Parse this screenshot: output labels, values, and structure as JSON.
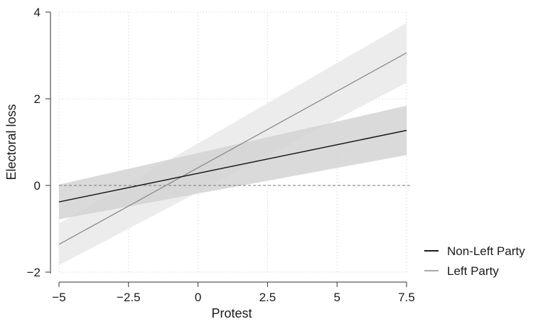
{
  "chart_data": {
    "type": "line",
    "xlabel": "Protest",
    "ylabel": "Electoral loss",
    "xlim": [
      -5,
      7.5
    ],
    "ylim": [
      -2,
      4
    ],
    "xticks": [
      -5,
      -2.5,
      0,
      2.5,
      5,
      7.5
    ],
    "xtick_labels": [
      "−5",
      "−2.5",
      "0",
      "2.5",
      "5",
      "7.5"
    ],
    "yticks": [
      -2,
      0,
      2,
      4
    ],
    "ytick_labels": [
      "−2",
      "0",
      "2",
      "4"
    ],
    "grid": true,
    "reference_line": {
      "y": 0,
      "style": "dashed"
    },
    "legend_position": "bottom-right",
    "series": [
      {
        "name": "Non-Left Party",
        "color": "#1a1a1a",
        "band_color": "#d4d4d4",
        "x": [
          -5,
          7.5
        ],
        "y": [
          -0.38,
          1.27
        ],
        "ci_lower": [
          -0.78,
          0.7
        ],
        "ci_upper": [
          0.02,
          1.84
        ]
      },
      {
        "name": "Left Party",
        "color": "#8c8c8c",
        "band_color": "#ececec",
        "x": [
          -5,
          7.5
        ],
        "y": [
          -1.36,
          3.06
        ],
        "ci_lower": [
          -1.84,
          2.37
        ],
        "ci_upper": [
          -0.88,
          3.75
        ]
      }
    ]
  }
}
